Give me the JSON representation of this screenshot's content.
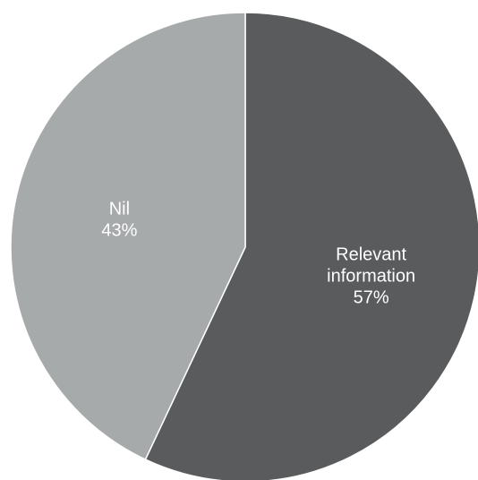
{
  "chart_data": {
    "type": "pie",
    "title": "",
    "slices": [
      {
        "label_lines": [
          "Relevant",
          "information"
        ],
        "value": 57,
        "value_label": "57%",
        "color": "#595b5c"
      },
      {
        "label_lines": [
          "Nil"
        ],
        "value": 43,
        "value_label": "43%",
        "color": "#a7aaab"
      }
    ],
    "start_angle_deg": 0,
    "direction": "clockwise"
  }
}
